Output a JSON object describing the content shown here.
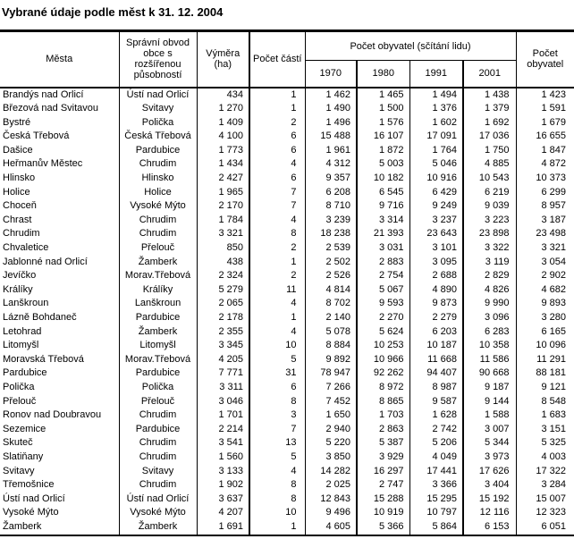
{
  "title": "Vybrané údaje podle měst k 31. 12. 2004",
  "table": {
    "header": {
      "mesta": "Města",
      "spravni_obvod": "Správní obvod obce s rozšířenou působností",
      "vymera": "Výměra (ha)",
      "pocet_casti": "Počet částí",
      "pocet_obyvatel_scitani": "Počet obyvatel (sčítání lidu)",
      "years": [
        "1970",
        "1980",
        "1991",
        "2001"
      ],
      "pocet_obyvatel": "Počet obyvatel"
    },
    "rows": [
      [
        "Brandýs nad Orlicí",
        "Ústí nad Orlicí",
        "434",
        "1",
        "1 462",
        "1 465",
        "1 494",
        "1 438",
        "1 423"
      ],
      [
        "Březová nad Svitavou",
        "Svitavy",
        "1 270",
        "1",
        "1 490",
        "1 500",
        "1 376",
        "1 379",
        "1 591"
      ],
      [
        "Bystré",
        "Polička",
        "1 409",
        "2",
        "1 496",
        "1 576",
        "1 602",
        "1 692",
        "1 679"
      ],
      [
        "Česká Třebová",
        "Česká Třebová",
        "4 100",
        "6",
        "15 488",
        "16 107",
        "17 091",
        "17 036",
        "16 655"
      ],
      [
        "Dašice",
        "Pardubice",
        "1 773",
        "6",
        "1 961",
        "1 872",
        "1 764",
        "1 750",
        "1 847"
      ],
      [
        "Heřmanův Městec",
        "Chrudim",
        "1 434",
        "4",
        "4 312",
        "5 003",
        "5 046",
        "4 885",
        "4 872"
      ],
      [
        "Hlinsko",
        "Hlinsko",
        "2 427",
        "6",
        "9 357",
        "10 182",
        "10 916",
        "10 543",
        "10 373"
      ],
      [
        "Holice",
        "Holice",
        "1 965",
        "7",
        "6 208",
        "6 545",
        "6 429",
        "6 219",
        "6 299"
      ],
      [
        "Choceň",
        "Vysoké Mýto",
        "2 170",
        "7",
        "8 710",
        "9 716",
        "9 249",
        "9 039",
        "8 957"
      ],
      [
        "Chrast",
        "Chrudim",
        "1 784",
        "4",
        "3 239",
        "3 314",
        "3 237",
        "3 223",
        "3 187"
      ],
      [
        "Chrudim",
        "Chrudim",
        "3 321",
        "8",
        "18 238",
        "21 393",
        "23 643",
        "23 898",
        "23 498"
      ],
      [
        "Chvaletice",
        "Přelouč",
        "850",
        "2",
        "2 539",
        "3 031",
        "3 101",
        "3 322",
        "3 321"
      ],
      [
        "Jablonné nad Orlicí",
        "Žamberk",
        "438",
        "1",
        "2 502",
        "2 883",
        "3 095",
        "3 119",
        "3 054"
      ],
      [
        "Jevíčko",
        "Morav.Třebová",
        "2 324",
        "2",
        "2 526",
        "2 754",
        "2 688",
        "2 829",
        "2 902"
      ],
      [
        "Králíky",
        "Králíky",
        "5 279",
        "11",
        "4 814",
        "5 067",
        "4 890",
        "4 826",
        "4 682"
      ],
      [
        "Lanškroun",
        "Lanškroun",
        "2 065",
        "4",
        "8 702",
        "9 593",
        "9 873",
        "9 990",
        "9 893"
      ],
      [
        "Lázně Bohdaneč",
        "Pardubice",
        "2 178",
        "1",
        "2 140",
        "2 270",
        "2 279",
        "3 096",
        "3 280"
      ],
      [
        "Letohrad",
        "Žamberk",
        "2 355",
        "4",
        "5 078",
        "5 624",
        "6 203",
        "6 283",
        "6 165"
      ],
      [
        "Litomyšl",
        "Litomyšl",
        "3 345",
        "10",
        "8 884",
        "10 253",
        "10 187",
        "10 358",
        "10 096"
      ],
      [
        "Moravská Třebová",
        "Morav.Třebová",
        "4 205",
        "5",
        "9 892",
        "10 966",
        "11 668",
        "11 586",
        "11 291"
      ],
      [
        "Pardubice",
        "Pardubice",
        "7 771",
        "31",
        "78 947",
        "92 262",
        "94 407",
        "90 668",
        "88 181"
      ],
      [
        "Polička",
        "Polička",
        "3 311",
        "6",
        "7 266",
        "8 972",
        "8 987",
        "9 187",
        "9 121"
      ],
      [
        "Přelouč",
        "Přelouč",
        "3 046",
        "8",
        "7 452",
        "8 865",
        "9 587",
        "9 144",
        "8 548"
      ],
      [
        "Ronov nad Doubravou",
        "Chrudim",
        "1 701",
        "3",
        "1 650",
        "1 703",
        "1 628",
        "1 588",
        "1 683"
      ],
      [
        "Sezemice",
        "Pardubice",
        "2 214",
        "7",
        "2 940",
        "2 863",
        "2 742",
        "3 007",
        "3 151"
      ],
      [
        "Skuteč",
        "Chrudim",
        "3 541",
        "13",
        "5 220",
        "5 387",
        "5 206",
        "5 344",
        "5 325"
      ],
      [
        "Slatiňany",
        "Chrudim",
        "1 560",
        "5",
        "3 850",
        "3 929",
        "4 049",
        "3 973",
        "4 003"
      ],
      [
        "Svitavy",
        "Svitavy",
        "3 133",
        "4",
        "14 282",
        "16 297",
        "17 441",
        "17 626",
        "17 322"
      ],
      [
        "Třemošnice",
        "Chrudim",
        "1 902",
        "8",
        "2 025",
        "2 747",
        "3 366",
        "3 404",
        "3 284"
      ],
      [
        "Ústí nad Orlicí",
        "Ústí nad Orlicí",
        "3 637",
        "8",
        "12 843",
        "15 288",
        "15 295",
        "15 192",
        "15 007"
      ],
      [
        "Vysoké Mýto",
        "Vysoké Mýto",
        "4 207",
        "10",
        "9 496",
        "10 919",
        "10 797",
        "12 116",
        "12 323"
      ],
      [
        "Žamberk",
        "Žamberk",
        "1 691",
        "1",
        "4 605",
        "5 366",
        "5 864",
        "6 153",
        "6 051"
      ]
    ]
  }
}
